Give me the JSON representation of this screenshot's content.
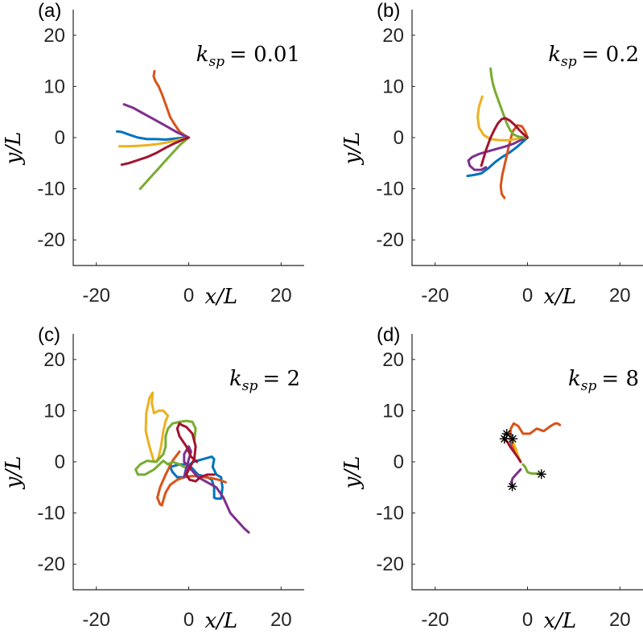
{
  "chart_data": [
    {
      "type": "line",
      "panel_label": "(a)",
      "annotation": {
        "k": "k",
        "sub": "sp",
        "value": "= 0.01"
      },
      "xlabel": "x/L",
      "ylabel": "y/L",
      "xlim": [
        -25,
        25
      ],
      "ylim": [
        -25,
        25
      ],
      "xticks": [
        -20,
        0,
        20
      ],
      "yticks": [
        20,
        10,
        0,
        -10,
        -20
      ],
      "xticklabels": [
        "-20",
        "0",
        "20"
      ],
      "yticklabels": [
        "20",
        "10",
        "0",
        "-10",
        "-20"
      ],
      "grid": false,
      "series": [
        {
          "color": "#0072BD",
          "x": [
            0,
            -1,
            -3,
            -5,
            -7,
            -9,
            -11,
            -13,
            -14.5,
            -15.5
          ],
          "y": [
            0,
            0,
            -0.2,
            -0.4,
            -0.3,
            -0.3,
            0,
            0.6,
            1.1,
            1.2
          ]
        },
        {
          "color": "#D95319",
          "x": [
            0,
            -1,
            -2,
            -3,
            -4,
            -4.6,
            -5.2,
            -5.8,
            -6.5,
            -7.2,
            -7.6,
            -7.4
          ],
          "y": [
            0,
            0.5,
            1.2,
            2.5,
            4,
            5.5,
            7,
            8.5,
            10,
            11,
            12,
            13
          ]
        },
        {
          "color": "#EDB120",
          "x": [
            0,
            -1,
            -3,
            -5,
            -7,
            -9,
            -11,
            -13,
            -15
          ],
          "y": [
            0,
            -0.2,
            -0.6,
            -1,
            -1.3,
            -1.5,
            -1.6,
            -1.7,
            -1.7
          ]
        },
        {
          "color": "#7E2F8E",
          "x": [
            0,
            -1,
            -2.5,
            -4,
            -6,
            -8,
            -10,
            -12,
            -14
          ],
          "y": [
            0,
            0.4,
            1,
            1.8,
            2.8,
            3.8,
            4.8,
            5.8,
            6.5
          ]
        },
        {
          "color": "#77AC30",
          "x": [
            0,
            -0.8,
            -1.6,
            -2.5,
            -3.5,
            -4.5,
            -5.5,
            -6.5,
            -7.5,
            -8.5,
            -9.5,
            -10.5
          ],
          "y": [
            0,
            -0.6,
            -1.2,
            -2,
            -3,
            -4,
            -5,
            -6,
            -7,
            -8,
            -9,
            -10
          ]
        },
        {
          "color": "#A2142F",
          "x": [
            0,
            -1,
            -2,
            -3.5,
            -5,
            -7,
            -9,
            -11,
            -13,
            -14.5
          ],
          "y": [
            0,
            -0.3,
            -0.7,
            -1.3,
            -2,
            -3,
            -3.8,
            -4.4,
            -5,
            -5.3
          ]
        }
      ]
    },
    {
      "type": "line",
      "panel_label": "(b)",
      "annotation": {
        "k": "k",
        "sub": "sp",
        "value": "= 0.2"
      },
      "xlabel": "x/L",
      "ylabel": "y/L",
      "xlim": [
        -25,
        25
      ],
      "ylim": [
        -25,
        25
      ],
      "xticks": [
        -20,
        0,
        20
      ],
      "yticks": [
        20,
        10,
        0,
        -10,
        -20
      ],
      "xticklabels": [
        "-20",
        "0",
        "20"
      ],
      "yticklabels": [
        "20",
        "10",
        "0",
        "-10",
        "-20"
      ],
      "grid": false,
      "series": [
        {
          "color": "#0072BD",
          "x": [
            0,
            -1,
            -2.5,
            -4,
            -5.5,
            -7,
            -8.5,
            -10,
            -11.5,
            -13
          ],
          "y": [
            0,
            -0.8,
            -2,
            -3,
            -3.8,
            -4.8,
            -6,
            -7,
            -7.3,
            -7.5
          ]
        },
        {
          "color": "#D95319",
          "x": [
            0,
            -0.5,
            -1.2,
            -2.2,
            -3.2,
            -4,
            -4.5,
            -5,
            -5.5,
            -5.8,
            -5.6,
            -5
          ],
          "y": [
            0,
            1.2,
            2.2,
            2.4,
            1.2,
            -1.5,
            -3.5,
            -5.5,
            -7.5,
            -9.5,
            -11,
            -11.8
          ]
        },
        {
          "color": "#EDB120",
          "x": [
            0,
            -2,
            -4,
            -6,
            -8,
            -9.5,
            -10.5,
            -10.8,
            -10.5,
            -9.8
          ],
          "y": [
            0,
            -0.2,
            -0.5,
            -0.5,
            -0.3,
            0.5,
            2,
            4,
            6,
            8
          ]
        },
        {
          "color": "#7E2F8E",
          "x": [
            0,
            -1.5,
            -3,
            -5,
            -7,
            -9,
            -10.5,
            -12,
            -12.8,
            -12.5,
            -11.5,
            -10,
            -9
          ],
          "y": [
            0,
            -0.5,
            -1.2,
            -1.8,
            -2.3,
            -2.8,
            -3.2,
            -3.8,
            -4.5,
            -5.5,
            -6.3,
            -6.3,
            -5.8
          ]
        },
        {
          "color": "#77AC30",
          "x": [
            0,
            -1,
            -2,
            -3,
            -3.8,
            -4.6,
            -5.4,
            -6.2,
            -7,
            -7.5,
            -7.8,
            -8
          ],
          "y": [
            0,
            0,
            0.2,
            0.6,
            1.5,
            3,
            5,
            7,
            9,
            10.5,
            12,
            13.5
          ]
        },
        {
          "color": "#A2142F",
          "x": [
            0,
            -0.8,
            -1.8,
            -2.8,
            -3.8,
            -4.8,
            -5.6,
            -6.4,
            -7.2,
            -8,
            -9,
            -10
          ],
          "y": [
            0,
            0.6,
            1.5,
            2.5,
            3.3,
            3.8,
            3.6,
            2.8,
            1.5,
            0,
            -2.5,
            -5.5
          ]
        }
      ]
    },
    {
      "type": "line",
      "panel_label": "(c)",
      "annotation": {
        "k": "k",
        "sub": "sp",
        "value": "= 2"
      },
      "xlabel": "x/L",
      "ylabel": "y/L",
      "xlim": [
        -25,
        25
      ],
      "ylim": [
        -25,
        25
      ],
      "xticks": [
        -20,
        0,
        20
      ],
      "yticks": [
        20,
        10,
        0,
        -10,
        -20
      ],
      "xticklabels": [
        "-20",
        "0",
        "20"
      ],
      "yticklabels": [
        "20",
        "10",
        "0",
        "-10",
        "-20"
      ],
      "grid": false,
      "series": [
        {
          "color": "#0072BD",
          "x": [
            -4,
            -2,
            0,
            1,
            2,
            4,
            5,
            5.5,
            5.5,
            6,
            7,
            7.3,
            7,
            6,
            5.2,
            5.5,
            5,
            3,
            1,
            -0.5,
            -1,
            -2.5,
            -3.5,
            -4
          ],
          "y": [
            -1,
            -0.5,
            -0.5,
            -1.5,
            -2.5,
            -3,
            -3.5,
            -5,
            -7,
            -7.2,
            -7.2,
            -5,
            -3,
            -2.5,
            -1,
            0.5,
            1,
            0.5,
            0,
            -1,
            -3,
            -3,
            -2,
            -1
          ]
        },
        {
          "color": "#D95319",
          "x": [
            8,
            6.5,
            5,
            3.5,
            2,
            0.5,
            -1,
            -2.5,
            -4,
            -5,
            -5.5,
            -5.8,
            -6.2,
            -6.8,
            -6.2,
            -5,
            -3.5,
            -2
          ],
          "y": [
            -4,
            -3.5,
            -3.2,
            -3,
            -2.8,
            -2.8,
            -3,
            -3.5,
            -4.5,
            -6,
            -7.5,
            -8.5,
            -8.3,
            -7,
            -5,
            -2.5,
            0.2,
            2
          ]
        },
        {
          "color": "#EDB120",
          "x": [
            -7.5,
            -8.5,
            -9.3,
            -9.2,
            -8.5,
            -7.8,
            -8,
            -7.5,
            -6.5,
            -5.5,
            -4.5,
            -5,
            -5.5,
            -6,
            -6.5,
            -7
          ],
          "y": [
            0,
            3,
            6,
            9.5,
            12.5,
            13.5,
            11.5,
            9.5,
            10,
            10,
            9,
            8,
            6,
            3,
            1,
            0
          ]
        },
        {
          "color": "#7E2F8E",
          "x": [
            -1,
            -0.5,
            0,
            0.5,
            0,
            -1,
            -1,
            0.5,
            2,
            4,
            6,
            7.5,
            8.5,
            9,
            10,
            11,
            12,
            13
          ],
          "y": [
            -3,
            -1.5,
            0.5,
            2,
            3,
            1.5,
            0,
            -1.5,
            -3,
            -4,
            -5,
            -7,
            -9,
            -10,
            -11,
            -12,
            -13,
            -13.8
          ]
        },
        {
          "color": "#77AC30",
          "x": [
            -1,
            -2,
            -3.5,
            -4.5,
            -5.5,
            -7.5,
            -9.5,
            -11,
            -11.5,
            -10.5,
            -9,
            -7,
            -5.5,
            -5,
            -5,
            -4.5,
            -3.5,
            -2,
            -0.5,
            0.8,
            1.5,
            1.2
          ],
          "y": [
            -1,
            -0.5,
            0,
            -0.5,
            0.2,
            -1.5,
            -2.5,
            -2.5,
            -1.5,
            -0.5,
            0.2,
            0,
            1.5,
            3,
            5,
            6.5,
            7.5,
            7.8,
            8,
            7.8,
            6.5,
            4
          ]
        },
        {
          "color": "#A2142F",
          "x": [
            1.8,
            0.5,
            -0.5,
            -2,
            -2.5,
            -2,
            -1.5,
            -0.5,
            0.8,
            1.5,
            1.2,
            0.3,
            -0.5,
            0.2,
            1.5,
            2.5,
            4,
            5.5
          ],
          "y": [
            0,
            1,
            3,
            5,
            6.5,
            7.5,
            7.2,
            6.8,
            5.5,
            3,
            0.5,
            -1,
            -2.5,
            -3.5,
            -3.8,
            -3,
            -2.5,
            -2.5
          ]
        }
      ]
    },
    {
      "type": "line",
      "panel_label": "(d)",
      "annotation": {
        "k": "k",
        "sub": "sp",
        "value": "= 8"
      },
      "xlabel": "x/L",
      "ylabel": "y/L",
      "xlim": [
        -25,
        25
      ],
      "ylim": [
        -25,
        25
      ],
      "xticks": [
        -20,
        0,
        20
      ],
      "yticks": [
        20,
        10,
        0,
        -10,
        -20
      ],
      "xticklabels": [
        "-20",
        "0",
        "20"
      ],
      "yticklabels": [
        "20",
        "10",
        "0",
        "-10",
        "-20"
      ],
      "grid": false,
      "endpoint_marker": "asterisk",
      "series": [
        {
          "color": "#0072BD",
          "x": [
            -2.5,
            -3,
            -3.5,
            -3.8,
            -3.5,
            -4.5
          ],
          "y": [
            1.5,
            2.5,
            3.5,
            4.5,
            5.2,
            5.5
          ],
          "end_marker": true
        },
        {
          "color": "#D95319",
          "x": [
            -2.5,
            -3.2,
            -3.8,
            -3.6,
            -3,
            -2,
            -1,
            0.5,
            2,
            3.5,
            5,
            6,
            6.5,
            7
          ],
          "y": [
            1.5,
            3,
            5,
            6.5,
            7.5,
            7,
            5.5,
            5.5,
            6.5,
            6,
            7,
            7.5,
            7.5,
            7.2
          ],
          "end_marker": false
        },
        {
          "color": "#EDB120",
          "x": [
            -1.5,
            -2,
            -2.5,
            -3,
            -3.2,
            -3.2
          ],
          "y": [
            0,
            1,
            2.5,
            3.5,
            4.2,
            4.5
          ],
          "end_marker": true
        },
        {
          "color": "#7E2F8E",
          "x": [
            -1.5,
            -2.5,
            -3.2,
            -3.5,
            -3.3
          ],
          "y": [
            -1.5,
            -2.5,
            -3.2,
            -4,
            -4.8
          ],
          "end_marker": true
        },
        {
          "color": "#77AC30",
          "x": [
            -1,
            -0.5,
            0,
            0.5,
            1,
            2,
            3
          ],
          "y": [
            -0.5,
            -1,
            -2,
            -2.2,
            -2.3,
            -2.3,
            -2.4
          ],
          "end_marker": true
        },
        {
          "color": "#A2142F",
          "x": [
            -1.5,
            -2.2,
            -3,
            -3.8,
            -4.3,
            -5
          ],
          "y": [
            0,
            1,
            2,
            3,
            3.8,
            4.5
          ],
          "end_marker": true
        }
      ]
    }
  ]
}
